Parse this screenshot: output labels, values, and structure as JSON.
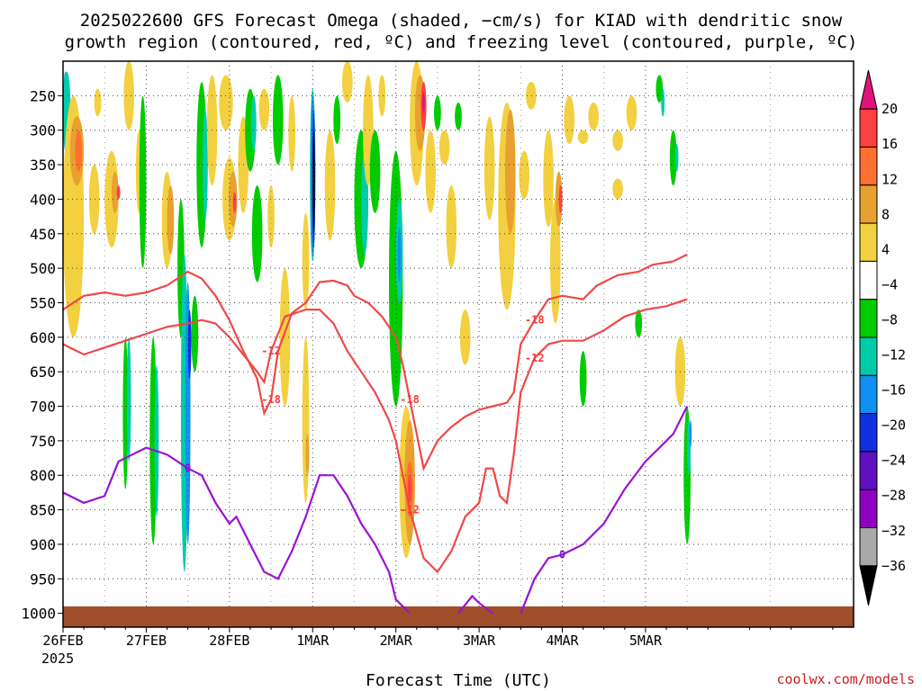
{
  "chart": {
    "title_line1": "2025022600 GFS Forecast Omega (shaded, −cm/s) for KIAD with dendritic snow",
    "title_line2": "growth region (contoured, red, ºC) and freezing level (contoured, purple, ºC)",
    "xlabel": "Forecast Time (UTC)",
    "credit": "coolwx.com/models",
    "year_label": "2025"
  },
  "chart_data": {
    "type": "heatmap",
    "title": "2025022600 GFS Forecast Omega (shaded, −cm/s) for KIAD with dendritic snow growth region (contoured, red, ºC) and freezing level (contoured, purple, ºC)",
    "xlabel": "Forecast Time (UTC)",
    "ylabel": "",
    "x_start_hours": 0,
    "x_end_hours": 228,
    "x_ticks": [
      {
        "label": "26FEB",
        "hours": 0
      },
      {
        "label": "27FEB",
        "hours": 24
      },
      {
        "label": "28FEB",
        "hours": 48
      },
      {
        "label": "1MAR",
        "hours": 72
      },
      {
        "label": "2MAR",
        "hours": 96
      },
      {
        "label": "3MAR",
        "hours": 120
      },
      {
        "label": "4MAR",
        "hours": 144
      },
      {
        "label": "5MAR",
        "hours": 168
      }
    ],
    "y_ticks": [
      "250",
      "300",
      "350",
      "400",
      "450",
      "500",
      "550",
      "600",
      "650",
      "700",
      "750",
      "800",
      "850",
      "900",
      "950",
      "1000"
    ],
    "y_levels": [
      250,
      300,
      350,
      400,
      450,
      500,
      550,
      600,
      650,
      700,
      750,
      800,
      850,
      900,
      950,
      1000
    ],
    "y_range": [
      200,
      1020
    ],
    "grid": true,
    "colorbar": {
      "labels": [
        "20",
        "16",
        "12",
        "8",
        "4",
        "−4",
        "−8",
        "−12",
        "−16",
        "−20",
        "−24",
        "−28",
        "−32",
        "−36"
      ],
      "colors": [
        "#e0147a",
        "#ff4040",
        "#ff7030",
        "#e8a030",
        "#f2d040",
        "#ffffff",
        "#00cc00",
        "#00ccaa",
        "#1090f0",
        "#1030e0",
        "#6010c0",
        "#9000c0",
        "#a8a8a8",
        "#000000"
      ]
    },
    "red_contours": [
      {
        "label": "-18",
        "points": [
          [
            0,
            560
          ],
          [
            6,
            540
          ],
          [
            12,
            535
          ],
          [
            18,
            540
          ],
          [
            24,
            535
          ],
          [
            30,
            525
          ],
          [
            36,
            505
          ],
          [
            40,
            515
          ],
          [
            44,
            540
          ],
          [
            48,
            575
          ],
          [
            52,
            620
          ],
          [
            56,
            660
          ],
          [
            58,
            710
          ],
          [
            60,
            690
          ],
          [
            62,
            620
          ],
          [
            66,
            565
          ],
          [
            70,
            550
          ],
          [
            74,
            520
          ],
          [
            78,
            518
          ],
          [
            82,
            525
          ],
          [
            84,
            540
          ],
          [
            88,
            550
          ],
          [
            92,
            570
          ],
          [
            96,
            600
          ],
          [
            98,
            640
          ],
          [
            100,
            690
          ],
          [
            102,
            740
          ],
          [
            104,
            790
          ],
          [
            108,
            750
          ],
          [
            112,
            730
          ],
          [
            116,
            715
          ],
          [
            120,
            705
          ],
          [
            124,
            700
          ],
          [
            128,
            695
          ],
          [
            130,
            680
          ],
          [
            132,
            610
          ],
          [
            136,
            575
          ],
          [
            140,
            545
          ],
          [
            144,
            540
          ],
          [
            150,
            545
          ],
          [
            154,
            525
          ],
          [
            160,
            510
          ],
          [
            166,
            505
          ],
          [
            170,
            495
          ],
          [
            176,
            490
          ],
          [
            180,
            480
          ]
        ]
      },
      {
        "label": "-12",
        "points": [
          [
            0,
            610
          ],
          [
            6,
            625
          ],
          [
            12,
            615
          ],
          [
            18,
            605
          ],
          [
            24,
            595
          ],
          [
            30,
            585
          ],
          [
            36,
            580
          ],
          [
            40,
            575
          ],
          [
            44,
            580
          ],
          [
            48,
            600
          ],
          [
            52,
            625
          ],
          [
            56,
            650
          ],
          [
            58,
            665
          ],
          [
            60,
            620
          ],
          [
            64,
            570
          ],
          [
            70,
            560
          ],
          [
            74,
            560
          ],
          [
            78,
            580
          ],
          [
            82,
            620
          ],
          [
            86,
            650
          ],
          [
            90,
            680
          ],
          [
            94,
            720
          ],
          [
            96,
            750
          ],
          [
            98,
            800
          ],
          [
            100,
            850
          ],
          [
            104,
            920
          ],
          [
            108,
            940
          ],
          [
            112,
            910
          ],
          [
            116,
            860
          ],
          [
            120,
            840
          ],
          [
            122,
            790
          ],
          [
            124,
            790
          ],
          [
            126,
            830
          ],
          [
            128,
            840
          ],
          [
            130,
            770
          ],
          [
            132,
            680
          ],
          [
            136,
            630
          ],
          [
            140,
            610
          ],
          [
            144,
            605
          ],
          [
            150,
            605
          ],
          [
            156,
            590
          ],
          [
            162,
            570
          ],
          [
            168,
            560
          ],
          [
            174,
            555
          ],
          [
            180,
            545
          ]
        ]
      }
    ],
    "purple_contours": [
      {
        "label": "0",
        "points": [
          [
            0,
            825
          ],
          [
            6,
            840
          ],
          [
            12,
            830
          ],
          [
            16,
            780
          ],
          [
            20,
            770
          ],
          [
            24,
            760
          ],
          [
            30,
            770
          ],
          [
            36,
            790
          ],
          [
            40,
            800
          ],
          [
            44,
            840
          ],
          [
            48,
            870
          ],
          [
            50,
            860
          ],
          [
            54,
            900
          ],
          [
            58,
            940
          ],
          [
            62,
            950
          ],
          [
            66,
            910
          ],
          [
            70,
            860
          ],
          [
            74,
            800
          ],
          [
            78,
            800
          ],
          [
            82,
            830
          ],
          [
            86,
            870
          ],
          [
            90,
            900
          ],
          [
            94,
            940
          ],
          [
            96,
            980
          ],
          [
            100,
            1000
          ]
        ]
      },
      {
        "label": "0",
        "points": [
          [
            114,
            1000
          ],
          [
            118,
            975
          ],
          [
            120,
            985
          ],
          [
            124,
            1000
          ]
        ]
      },
      {
        "label": "0",
        "points": [
          [
            132,
            1000
          ],
          [
            136,
            950
          ],
          [
            140,
            920
          ],
          [
            144,
            915
          ],
          [
            150,
            900
          ],
          [
            156,
            870
          ],
          [
            162,
            820
          ],
          [
            168,
            780
          ],
          [
            172,
            760
          ],
          [
            176,
            740
          ],
          [
            180,
            700
          ]
        ]
      }
    ]
  }
}
